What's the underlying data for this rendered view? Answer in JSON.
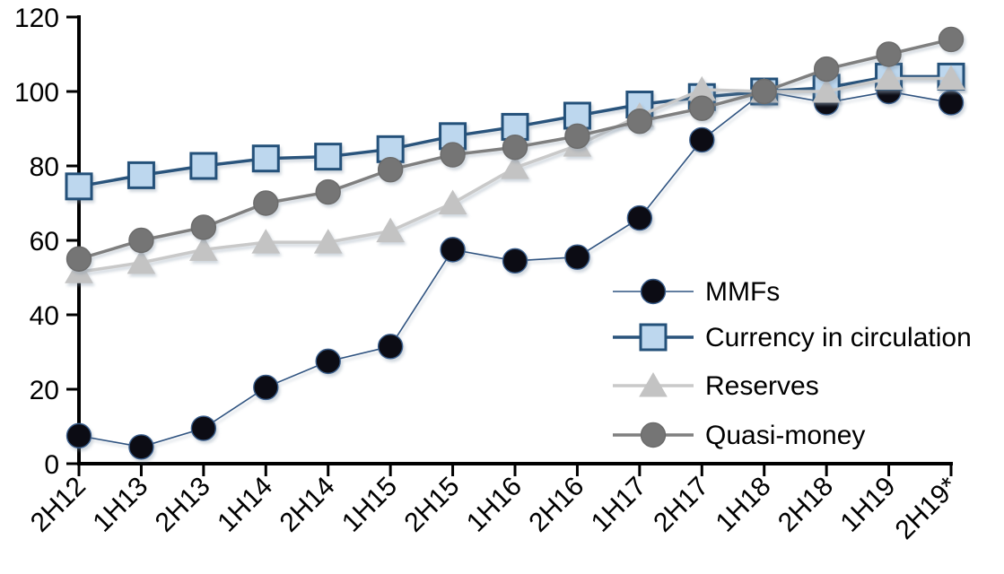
{
  "chart_data": {
    "type": "line",
    "title": "",
    "xlabel": "",
    "ylabel": "",
    "ylim": [
      0,
      120
    ],
    "ytick_step": 20,
    "grid": false,
    "legend_position": "inside-right",
    "categories": [
      "2H12",
      "1H13",
      "2H13",
      "1H14",
      "2H14",
      "1H15",
      "2H15",
      "1H16",
      "2H16",
      "1H17",
      "2H17",
      "1H18",
      "2H18",
      "1H19",
      "2H19*"
    ],
    "series": [
      {
        "name": "MMFs",
        "marker": "circle",
        "marker_fill": "#0c0c14",
        "marker_stroke": "#3a5e8c",
        "line_color": "#2f5380",
        "line_width": 1.6,
        "values": [
          7.5,
          4.5,
          9.5,
          20.5,
          27.5,
          31.5,
          57.5,
          54.5,
          55.5,
          66,
          87,
          100,
          97,
          100,
          97
        ]
      },
      {
        "name": "Currency in circulation",
        "marker": "square",
        "marker_fill": "#bdd7ee",
        "marker_stroke": "#24517a",
        "line_color": "#2a547c",
        "line_width": 3.5,
        "values": [
          74.5,
          77.5,
          80,
          82,
          82.5,
          84.5,
          88,
          90.5,
          93.5,
          96.5,
          98.5,
          100,
          101,
          104,
          104
        ]
      },
      {
        "name": "Reserves",
        "marker": "triangle",
        "marker_fill": "#c3c3c3",
        "marker_stroke": "#c3c3c3",
        "line_color": "#c9c9c9",
        "line_width": 3.5,
        "values": [
          51.5,
          54,
          57.5,
          59.5,
          59.5,
          62.5,
          70,
          79.5,
          85.5,
          93.5,
          100.5,
          100,
          100,
          103.5,
          103.5
        ]
      },
      {
        "name": "Quasi-money",
        "marker": "circle",
        "marker_fill": "#757575",
        "marker_stroke": "#6b6b6b",
        "line_color": "#7f7f7f",
        "line_width": 3.5,
        "values": [
          55,
          60,
          63.5,
          70,
          73,
          79,
          83,
          85,
          88,
          92,
          95.5,
          100,
          106,
          110,
          114
        ]
      }
    ],
    "axis_color": "#000000"
  }
}
